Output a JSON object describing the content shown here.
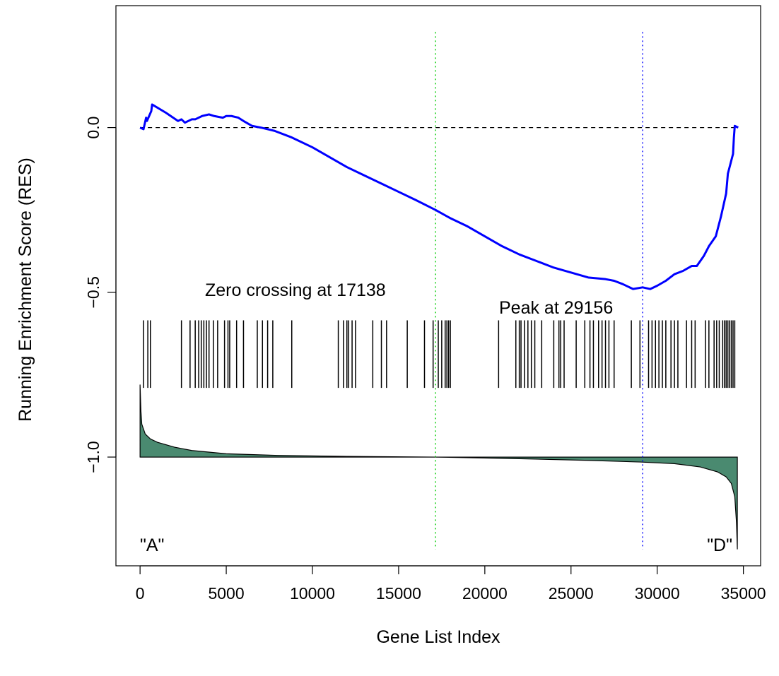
{
  "chart_data": {
    "type": "line",
    "title": "",
    "xlabel": "Gene List Index",
    "ylabel": "Running Enrichment Score (RES)",
    "xlim": [
      -1400,
      36000
    ],
    "ylim": [
      -1.33,
      0.37
    ],
    "x_ticks": [
      0,
      5000,
      10000,
      15000,
      20000,
      25000,
      30000,
      35000
    ],
    "y_ticks": [
      0.0,
      -0.5,
      -1.0
    ],
    "y_tick_labels": [
      "0.0",
      "−0.5",
      "−1.0"
    ],
    "series": [
      {
        "color": "#0000ff",
        "x": [
          0,
          200,
          350,
          400,
          650,
          700,
          1500,
          2200,
          2400,
          2600,
          3000,
          3200,
          3600,
          4000,
          4300,
          4800,
          5000,
          5300,
          5700,
          6000,
          6500,
          7000,
          7800,
          8800,
          10000,
          11000,
          12000,
          13000,
          14000,
          15000,
          16000,
          17138,
          18000,
          19000,
          20000,
          21000,
          22000,
          23000,
          24000,
          25000,
          26000,
          27000,
          27500,
          28000,
          28600,
          29156,
          29600,
          30000,
          30500,
          31000,
          31500,
          32000,
          32300,
          32700,
          33000,
          33400,
          33700,
          34000,
          34100,
          34400,
          34450,
          34500,
          34700
        ],
        "y": [
          0.0,
          -0.005,
          0.03,
          0.02,
          0.05,
          0.07,
          0.045,
          0.02,
          0.025,
          0.015,
          0.025,
          0.025,
          0.035,
          0.04,
          0.035,
          0.03,
          0.035,
          0.035,
          0.03,
          0.02,
          0.005,
          0.0,
          -0.01,
          -0.03,
          -0.06,
          -0.09,
          -0.12,
          -0.145,
          -0.17,
          -0.195,
          -0.22,
          -0.25,
          -0.275,
          -0.3,
          -0.33,
          -0.36,
          -0.385,
          -0.405,
          -0.425,
          -0.44,
          -0.455,
          -0.46,
          -0.465,
          -0.475,
          -0.49,
          -0.485,
          -0.49,
          -0.48,
          -0.465,
          -0.445,
          -0.435,
          -0.42,
          -0.42,
          -0.39,
          -0.36,
          -0.33,
          -0.27,
          -0.2,
          -0.14,
          -0.08,
          -0.03,
          0.005,
          0.0
        ]
      }
    ],
    "hits": [
      200,
      450,
      600,
      2400,
      2900,
      3200,
      3400,
      3550,
      3700,
      3850,
      4000,
      4250,
      4500,
      4900,
      5100,
      5200,
      5600,
      6000,
      6800,
      7100,
      7400,
      7700,
      8800,
      11500,
      11800,
      12000,
      12100,
      12300,
      12500,
      13500,
      14000,
      14300,
      15500,
      16500,
      17000,
      17300,
      17500,
      17700,
      17800,
      17900,
      18000,
      20800,
      21800,
      22000,
      22100,
      22300,
      22500,
      22700,
      22900,
      23300,
      24000,
      24300,
      24400,
      24600,
      25300,
      25800,
      26100,
      26300,
      26600,
      26800,
      27000,
      27200,
      27500,
      28500,
      29000,
      29500,
      29700,
      29900,
      30100,
      30300,
      30500,
      30800,
      31000,
      31200,
      31700,
      32000,
      32200,
      32800,
      33000,
      33300,
      33450,
      33600,
      33800,
      33900,
      34000,
      34100,
      34200,
      34300,
      34400,
      34500
    ],
    "ranked_metric": {
      "color": "#4a8a70",
      "baseline": -1.0,
      "x": [
        0,
        50,
        100,
        300,
        600,
        1000,
        2000,
        3000,
        5000,
        8000,
        12000,
        17138,
        22000,
        26000,
        29000,
        31000,
        32500,
        33500,
        34000,
        34300,
        34500,
        34600,
        34650
      ],
      "y": [
        -0.78,
        -0.86,
        -0.9,
        -0.93,
        -0.945,
        -0.955,
        -0.97,
        -0.98,
        -0.99,
        -0.995,
        -0.998,
        -1.0,
        -1.005,
        -1.01,
        -1.015,
        -1.02,
        -1.03,
        -1.045,
        -1.06,
        -1.08,
        -1.12,
        -1.2,
        -1.28
      ]
    },
    "vlines": [
      {
        "x": 17138,
        "color": "#00cc00"
      },
      {
        "x": 29156,
        "color": "#0000ff"
      }
    ],
    "annotations": {
      "zero_crossing": "Zero crossing at 17138",
      "peak": "Peak at 29156",
      "left_label": "\"A\"",
      "right_label": "\"D\""
    },
    "grid": false,
    "legend": "none"
  }
}
